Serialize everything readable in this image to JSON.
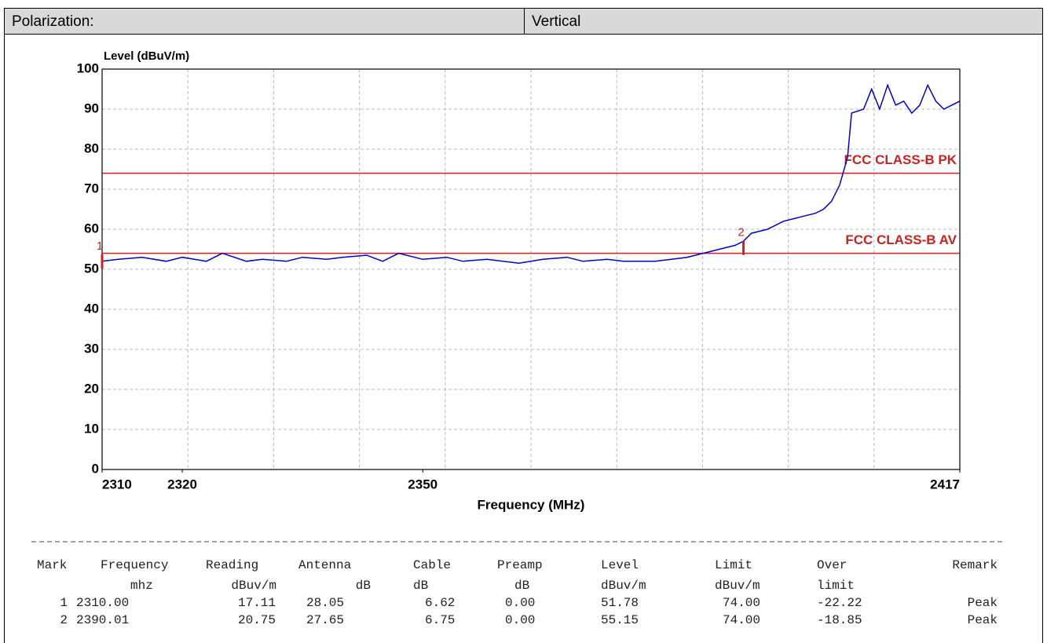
{
  "header": {
    "label": "Polarization:",
    "value": "Vertical"
  },
  "chart_data": {
    "type": "line",
    "y_label": "Level (dBuV/m)",
    "x_label": "Frequency (MHz)",
    "x": [
      2310,
      2312,
      2315,
      2318,
      2320,
      2323,
      2325,
      2328,
      2330,
      2333,
      2335,
      2338,
      2340,
      2343,
      2345,
      2347,
      2350,
      2353,
      2355,
      2358,
      2360,
      2362,
      2365,
      2368,
      2370,
      2373,
      2375,
      2377,
      2379,
      2381,
      2383,
      2385,
      2387,
      2389,
      2390,
      2391,
      2393,
      2395,
      2397,
      2399,
      2400,
      2401,
      2402,
      2403,
      2403.5,
      2405,
      2406,
      2407,
      2408,
      2409,
      2410,
      2411,
      2412,
      2413,
      2414,
      2415,
      2416,
      2417
    ],
    "values": [
      52,
      52.5,
      53,
      52,
      53,
      52,
      54,
      52,
      52.5,
      52,
      53,
      52.5,
      53,
      53.5,
      52,
      54,
      52.5,
      53,
      52,
      52.5,
      52,
      51.5,
      52.5,
      53,
      52,
      52.5,
      52,
      52,
      52,
      52.5,
      53,
      54,
      55,
      56,
      57,
      59,
      60,
      62,
      63,
      64,
      65,
      67,
      71,
      78,
      89,
      90,
      95,
      90,
      96,
      91,
      92,
      89,
      91,
      96,
      92,
      90,
      91,
      92
    ],
    "color": "#0000cc",
    "limits": [
      {
        "label": "FCC CLASS-B PK",
        "value": 74,
        "color": "#cc2222"
      },
      {
        "label": "FCC CLASS-B AV",
        "value": 54,
        "color": "#cc2222"
      }
    ],
    "markers": [
      {
        "label": "1",
        "x": 2310,
        "y": 51.78
      },
      {
        "label": "2",
        "x": 2390.01,
        "y": 55.15
      }
    ],
    "xlim": [
      2310,
      2417
    ],
    "xticks": [
      2310,
      2320,
      2350,
      2417
    ],
    "ylim": [
      0,
      100
    ],
    "yticks": [
      0,
      10,
      20,
      30,
      40,
      50,
      60,
      70,
      80,
      90,
      100
    ],
    "grid": true
  },
  "table": {
    "columns": [
      "Mark",
      "Frequency",
      "Reading",
      "Antenna",
      "Cable",
      "Preamp",
      "Level",
      "Limit",
      "Over",
      "Remark"
    ],
    "units": [
      "mhz",
      "dBuv/m",
      "dB",
      "dB",
      "dB",
      "dBuv/m",
      "dBuv/m",
      "limit"
    ],
    "rows": [
      [
        "1",
        "2310.00",
        "17.11",
        "28.05",
        "6.62",
        "0.00",
        "51.78",
        "74.00",
        "-22.22",
        "Peak"
      ],
      [
        "2",
        "2390.01",
        "20.75",
        "27.65",
        "6.75",
        "0.00",
        "55.15",
        "74.00",
        "-18.85",
        "Peak"
      ]
    ]
  }
}
